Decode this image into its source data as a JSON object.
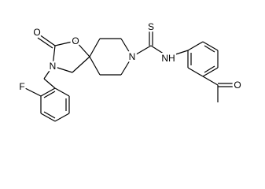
{
  "atoms": {
    "carbonyl_oxygen": "O",
    "ring_oxygen": "O",
    "oxazolidinone_nitrogen": "N",
    "piperidine_nitrogen": "N",
    "sulfur": "S",
    "amide_nh": "NH",
    "fluorine": "F",
    "acetyl_oxygen": "O"
  }
}
